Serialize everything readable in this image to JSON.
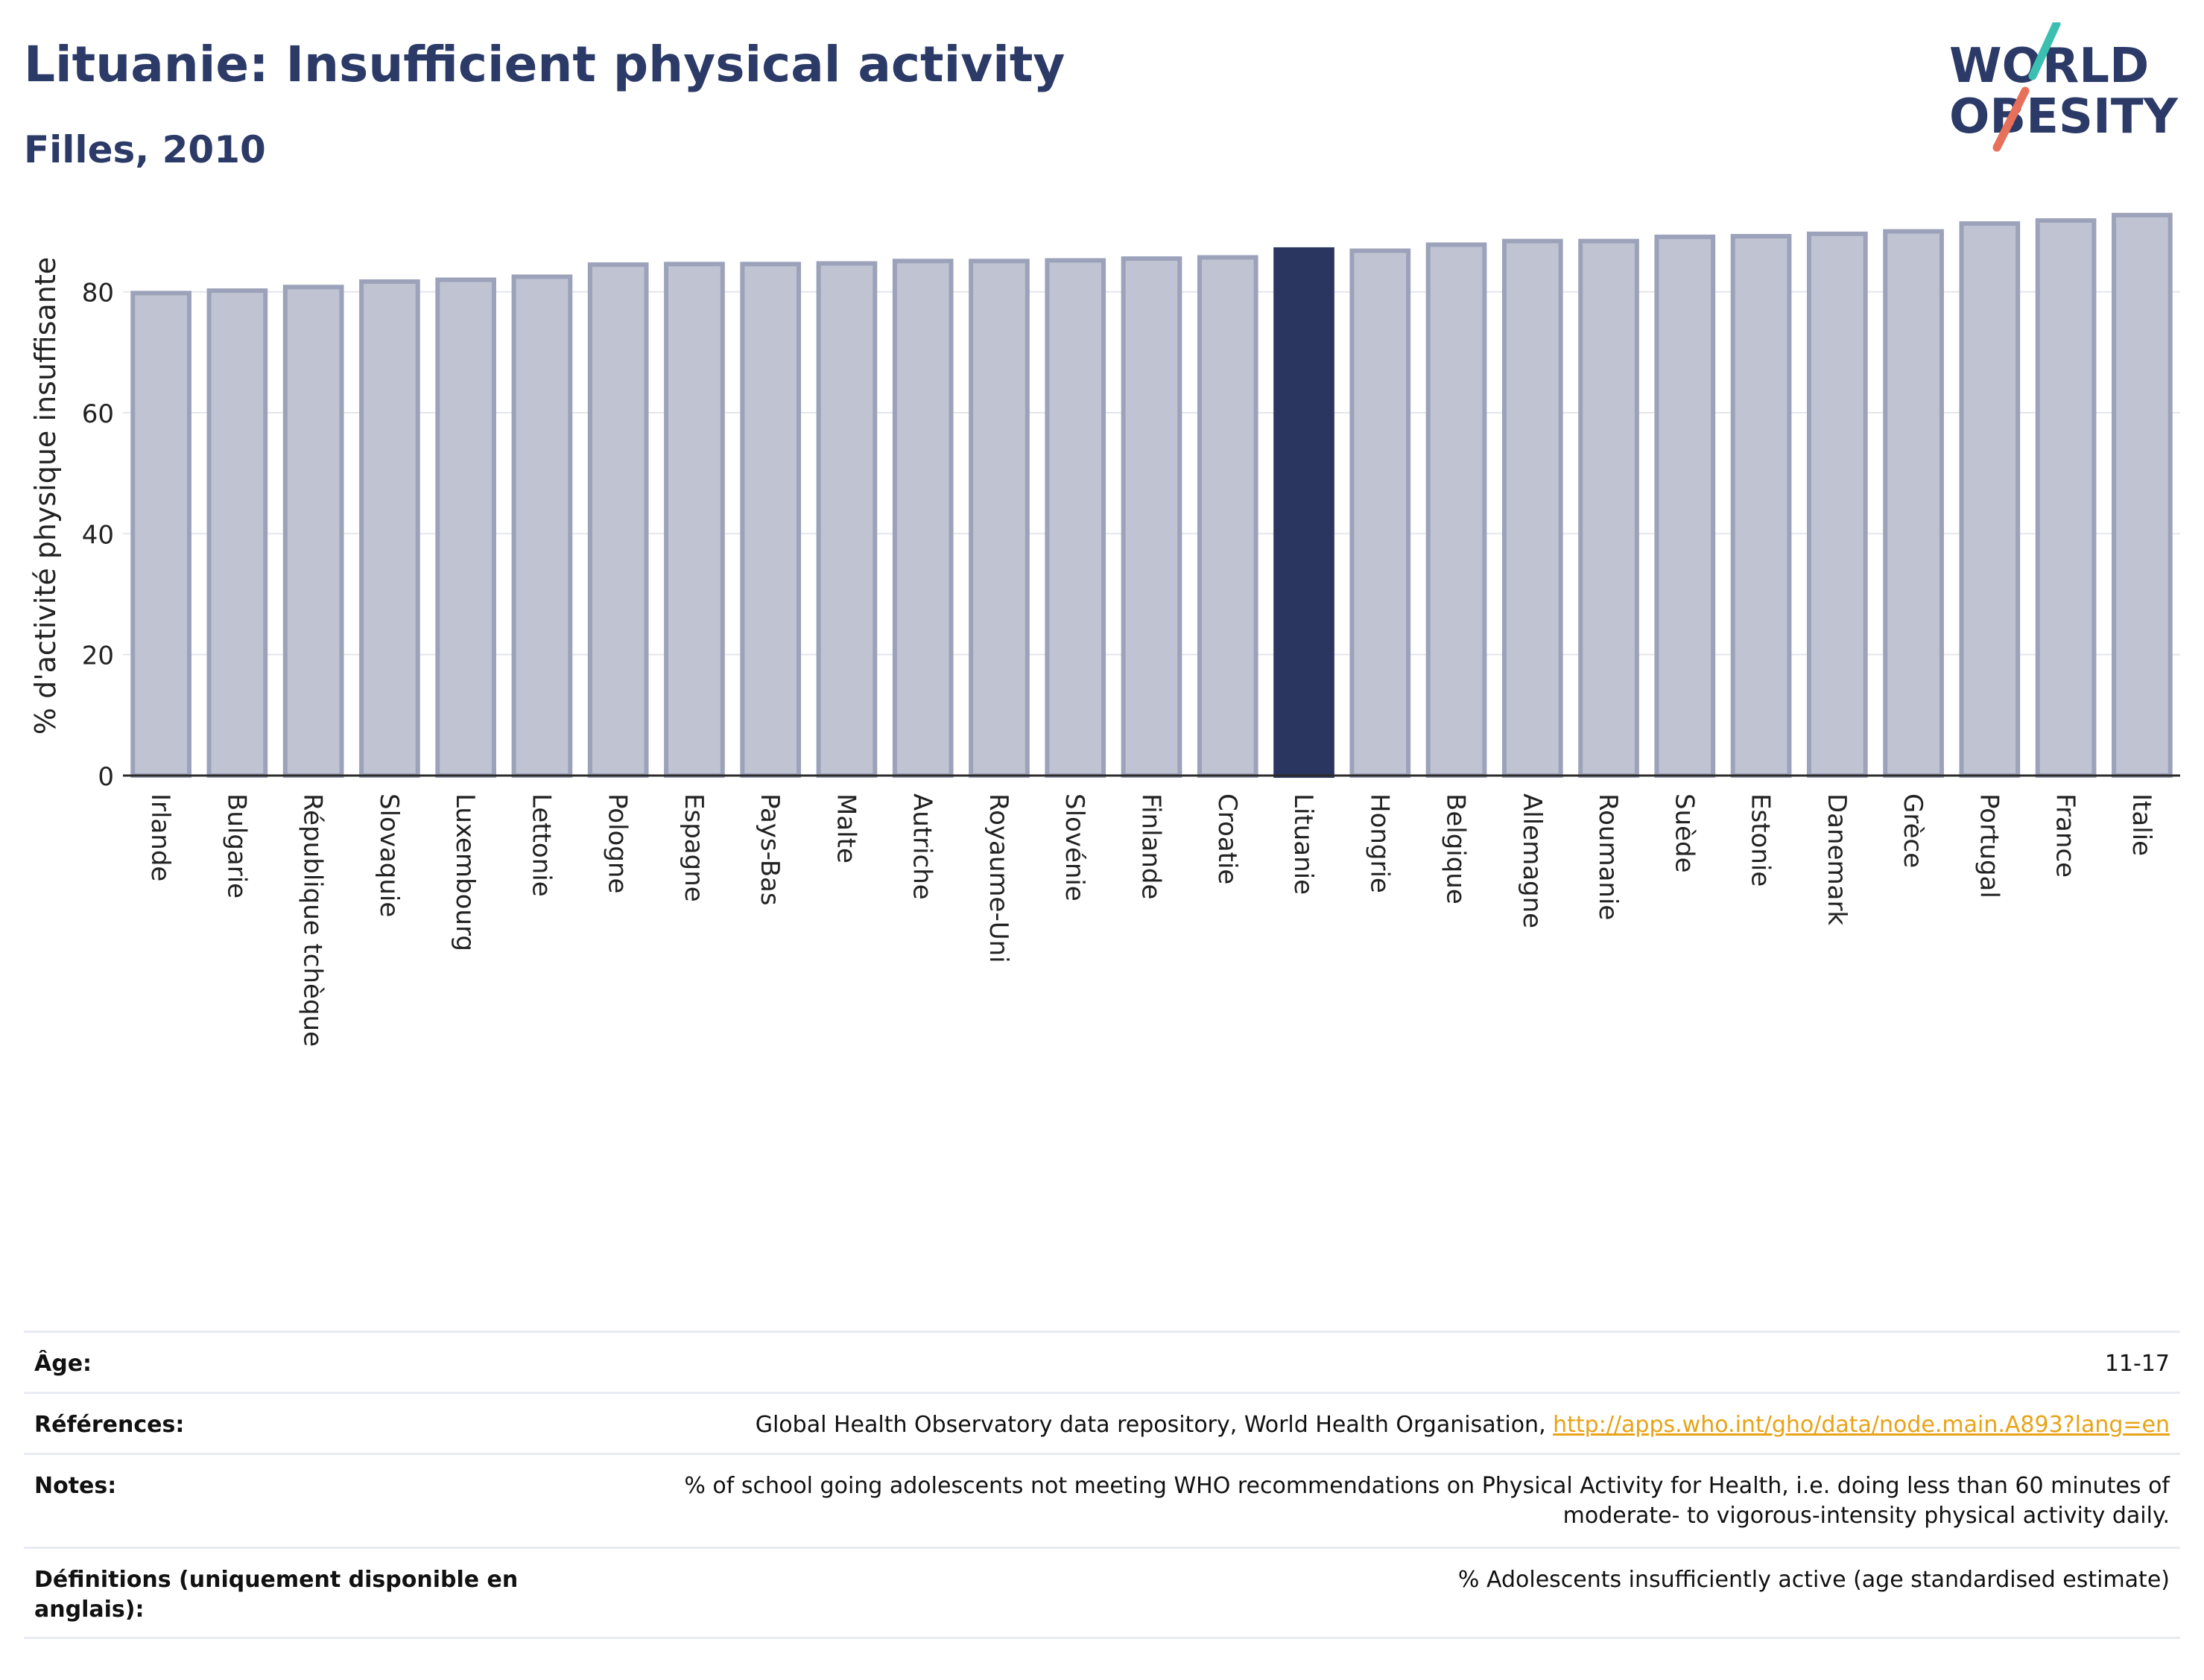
{
  "header": {
    "title": "Lituanie: Insufficient physical activity",
    "subtitle": "Filles, 2010"
  },
  "logo": {
    "line1": "WORLD",
    "line2": "OBESITY",
    "colors": {
      "text": "#2b3a67",
      "slash_top": "#3bbfb0",
      "slash_bottom": "#e8705a"
    }
  },
  "chart_data": {
    "type": "bar",
    "title": "",
    "xlabel": "",
    "ylabel": "% d'activité physique insuffisante",
    "ylim": [
      0,
      95
    ],
    "yticks": [
      0,
      20,
      40,
      60,
      80
    ],
    "grid": true,
    "highlight": "Lituanie",
    "colors": {
      "bar": "#c0c4d2",
      "bar_edge": "#9ba2b9",
      "highlight": "#2b3660",
      "grid": "#e4e6ec",
      "axis": "#2b2b2b"
    },
    "categories": [
      "Irlande",
      "Bulgarie",
      "République tchèque",
      "Slovaquie",
      "Luxembourg",
      "Lettonie",
      "Pologne",
      "Espagne",
      "Pays-Bas",
      "Malte",
      "Autriche",
      "Royaume-Uni",
      "Slovénie",
      "Finlande",
      "Croatie",
      "Lituanie",
      "Hongrie",
      "Belgique",
      "Allemagne",
      "Roumanie",
      "Suède",
      "Estonie",
      "Danemark",
      "Grèce",
      "Portugal",
      "France",
      "Italie"
    ],
    "values": [
      79.8,
      80.2,
      80.8,
      81.7,
      82.0,
      82.5,
      84.5,
      84.6,
      84.6,
      84.7,
      85.1,
      85.1,
      85.2,
      85.5,
      85.7,
      87.0,
      86.8,
      87.8,
      88.4,
      88.4,
      89.1,
      89.2,
      89.6,
      90.0,
      91.3,
      91.8,
      92.7
    ]
  },
  "meta": [
    {
      "label": "Âge:",
      "value": "11-17"
    },
    {
      "label": "Références:",
      "value": "Global Health Observatory data repository, World Health Organisation, ",
      "link": "http://apps.who.int/gho/data/node.main.A893?lang=en"
    },
    {
      "label": "Notes:",
      "value": "% of school going adolescents not meeting WHO recommendations on Physical Activity for Health, i.e. doing less than 60 minutes of moderate- to vigorous-intensity physical activity daily."
    },
    {
      "label": "Définitions (uniquement disponible en anglais):",
      "value": "% Adolescents insufficiently active (age standardised estimate)"
    }
  ]
}
